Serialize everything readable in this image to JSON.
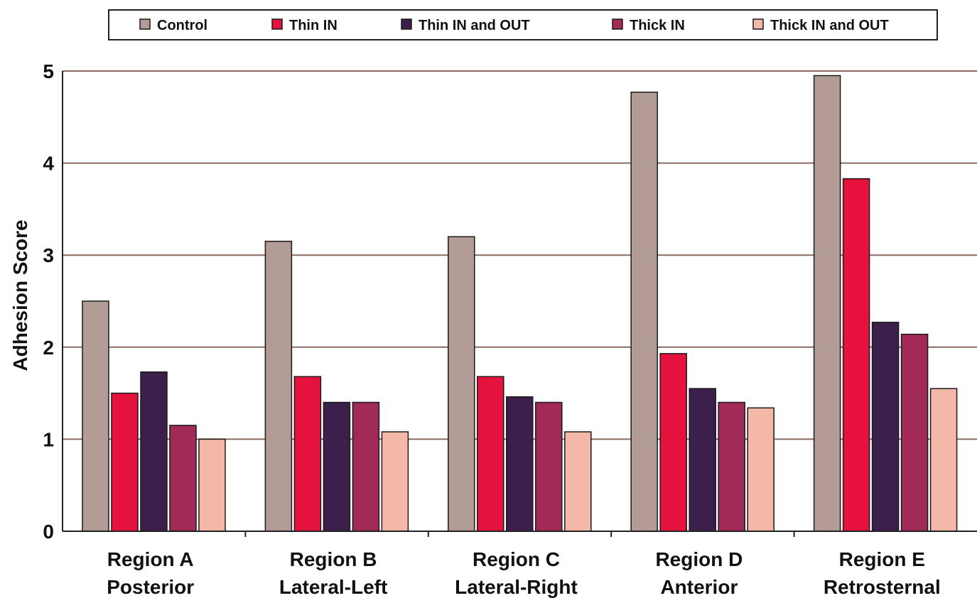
{
  "chart_data": {
    "type": "bar",
    "title": "",
    "xlabel": "",
    "ylabel": "Adhesion Score",
    "ylim": [
      0,
      5
    ],
    "yticks": [
      0,
      1,
      2,
      3,
      4,
      5
    ],
    "grid": true,
    "legend_position": "top",
    "categories": [
      {
        "line1": "Region A",
        "line2": "Posterior"
      },
      {
        "line1": "Region B",
        "line2": "Lateral-Left"
      },
      {
        "line1": "Region C",
        "line2": "Lateral-Right"
      },
      {
        "line1": "Region D",
        "line2": "Anterior"
      },
      {
        "line1": "Region E",
        "line2": "Retrosternal"
      }
    ],
    "series": [
      {
        "name": "Control",
        "color": "#b39b96",
        "values": [
          2.5,
          3.15,
          3.2,
          4.77,
          4.95
        ]
      },
      {
        "name": "Thin IN",
        "color": "#e4123d",
        "values": [
          1.5,
          1.68,
          1.68,
          1.93,
          3.83
        ]
      },
      {
        "name": "Thin IN and OUT",
        "color": "#3d1f4c",
        "values": [
          1.73,
          1.4,
          1.46,
          1.55,
          2.27
        ]
      },
      {
        "name": "Thick IN",
        "color": "#a12a58",
        "values": [
          1.15,
          1.4,
          1.4,
          1.4,
          2.14
        ]
      },
      {
        "name": "Thick IN and OUT",
        "color": "#f4b8a8",
        "values": [
          1.0,
          1.08,
          1.08,
          1.34,
          1.55
        ]
      }
    ],
    "gridline_color": "#8c6a64"
  }
}
